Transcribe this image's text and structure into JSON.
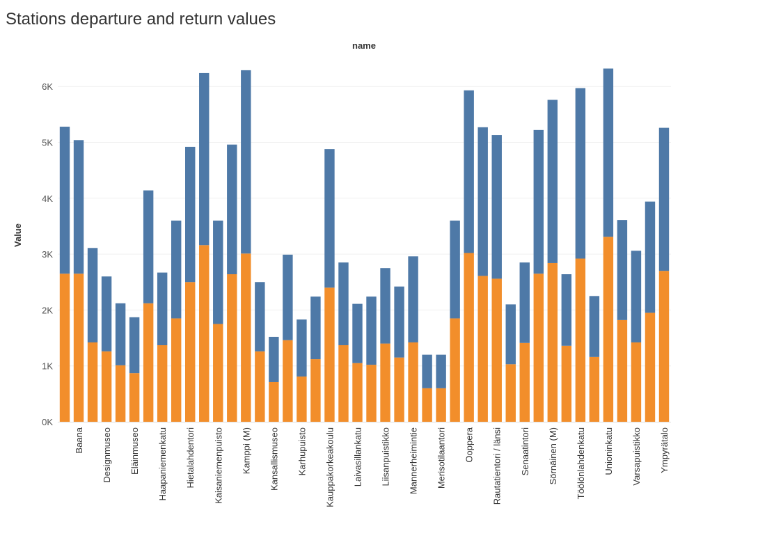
{
  "chart_data": {
    "type": "bar",
    "stacked": true,
    "title": "Stations departure and return values",
    "column_header": "name",
    "ylabel": "Value",
    "ylim": [
      0,
      6500
    ],
    "yticks": [
      0,
      1000,
      2000,
      3000,
      4000,
      5000,
      6000
    ],
    "ytick_labels": [
      "0K",
      "1K",
      "2K",
      "3K",
      "4K",
      "5K",
      "6K"
    ],
    "grid": true,
    "categories": [
      "",
      "Baana",
      "",
      "Designmuseo",
      "",
      "Eläinmuseo",
      "",
      "Haapaniemenkatu",
      "",
      "Hietalahdentori",
      "",
      "Kaisaniemenpuisto",
      "",
      "Kamppi (M)",
      "",
      "Kansallismuseo",
      "",
      "Karhupuisto",
      "",
      "Kauppakorkeakoulu",
      "",
      "Laivasillankatu",
      "",
      "Liisanpuistikko",
      "",
      "Mannerheimintie",
      "",
      "Merisotilaantori",
      "",
      "Ooppera",
      "",
      "Rautatientori / länsi",
      "",
      "Senaatintori",
      "",
      "Sörnäinen (M)",
      "",
      "Töölönlahdenkatu",
      "",
      "Unioninkatu",
      "",
      "Varsapuistikko",
      "",
      "Ympyrätalo"
    ],
    "series": [
      {
        "values": [
          2650,
          2650,
          1420,
          1260,
          1010,
          870,
          2120,
          1370,
          1850,
          2500,
          3160,
          1750,
          2640,
          3010,
          1260,
          710,
          1460,
          810,
          1120,
          2400,
          1370,
          1050,
          1020,
          1400,
          1150,
          1420,
          600,
          600,
          1850,
          3020,
          2610,
          2560,
          1030,
          1410,
          2650,
          2840,
          1360,
          2920,
          1160,
          3310,
          1820,
          1420,
          1950,
          2700
        ]
      },
      {
        "values": [
          2630,
          2390,
          1690,
          1340,
          1110,
          1000,
          2020,
          1300,
          1750,
          2420,
          3080,
          1850,
          2320,
          3280,
          1240,
          810,
          1530,
          1020,
          1120,
          2480,
          1480,
          1060,
          1220,
          1350,
          1270,
          1540,
          600,
          600,
          1750,
          2910,
          2660,
          2570,
          1070,
          1440,
          2570,
          2920,
          1280,
          3050,
          1090,
          3010,
          1790,
          1640,
          1990,
          2560
        ]
      }
    ],
    "colors": [
      "#f28e2b",
      "#4e79a7"
    ],
    "gridline_color": "#efefef",
    "axis_color": "#dddddd"
  }
}
